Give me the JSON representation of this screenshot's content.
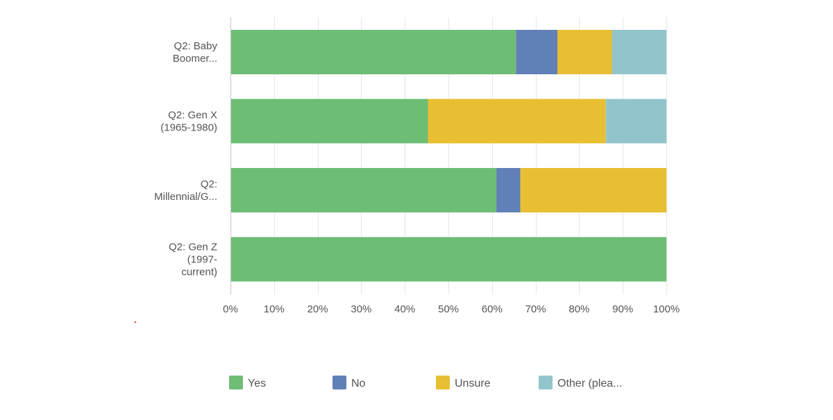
{
  "chart_data": {
    "type": "bar",
    "orientation": "horizontal",
    "stacked": true,
    "categories": [
      [
        "Q2: Baby",
        "Boomer..."
      ],
      [
        "Q2: Gen X",
        "(1965-1980)"
      ],
      [
        "Q2:",
        "Millennial/G..."
      ],
      [
        "Q2: Gen Z",
        "(1997-",
        "current)"
      ]
    ],
    "series": [
      {
        "name": "Yes",
        "color": "#6ebd75",
        "values": [
          65.5,
          45.3,
          61.0,
          100
        ]
      },
      {
        "name": "No",
        "color": "#6180b8",
        "values": [
          9.5,
          0,
          5.5,
          0
        ]
      },
      {
        "name": "Unsure",
        "color": "#e8bf32",
        "values": [
          12.5,
          40.8,
          33.5,
          0
        ]
      },
      {
        "name": "Other (plea...",
        "color": "#92c5cb",
        "values": [
          12.5,
          13.9,
          0,
          0
        ]
      }
    ],
    "xlim": [
      0,
      100
    ],
    "x_ticks": [
      "0%",
      "10%",
      "20%",
      "30%",
      "40%",
      "50%",
      "60%",
      "70%",
      "80%",
      "90%",
      "100%"
    ],
    "grid": true,
    "legend_position": "bottom"
  }
}
